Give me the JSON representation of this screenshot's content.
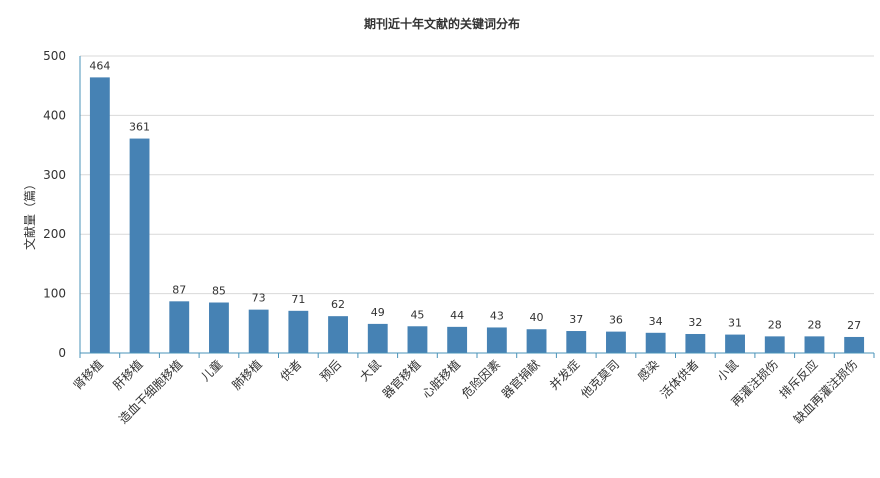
{
  "chart_data": {
    "type": "bar",
    "title": "期刊近十年文献的关键词分布",
    "xlabel": "",
    "ylabel": "文献量（篇）",
    "ylim": [
      0,
      500
    ],
    "yticks": [
      0,
      100,
      200,
      300,
      400,
      500
    ],
    "grid": true,
    "legend": "none",
    "bar_color": "#4682b4",
    "categories": [
      "肾移植",
      "肝移植",
      "造血干细胞移植",
      "儿童",
      "肺移植",
      "供者",
      "预后",
      "大鼠",
      "器官移植",
      "心脏移植",
      "危险因素",
      "器官捐献",
      "并发症",
      "他克莫司",
      "感染",
      "活体供者",
      "小鼠",
      "再灌注损伤",
      "排斥反应",
      "缺血再灌注损伤"
    ],
    "values": [
      464,
      361,
      87,
      85,
      73,
      71,
      62,
      49,
      45,
      44,
      43,
      40,
      37,
      36,
      34,
      32,
      31,
      28,
      28,
      27
    ]
  }
}
